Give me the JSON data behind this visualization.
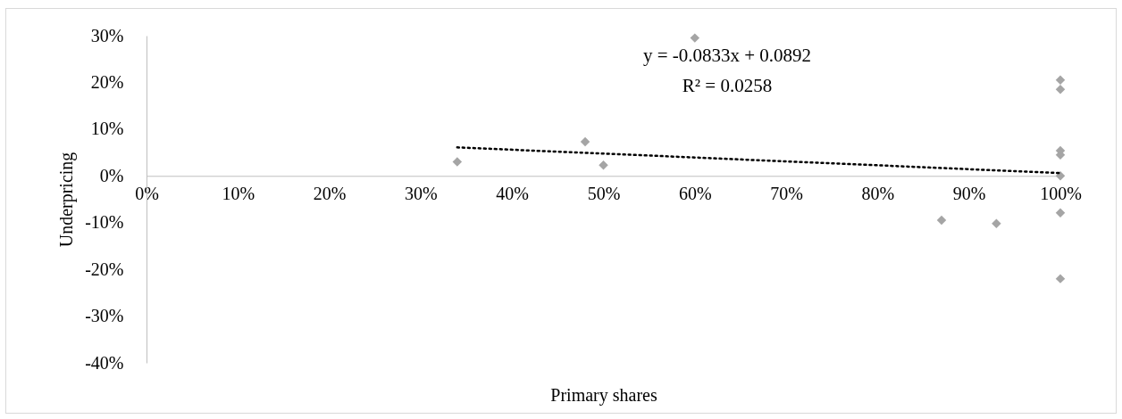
{
  "chart_data": {
    "type": "scatter",
    "xlabel": "Primary shares",
    "ylabel": "Underpricing",
    "annotations": [
      "y = -0.0833x + 0.0892",
      "R² = 0.0258"
    ],
    "xlim": [
      0,
      1
    ],
    "ylim": [
      -0.4,
      0.3
    ],
    "xticks": [
      {
        "value": 0,
        "label": "0%"
      },
      {
        "value": 0.1,
        "label": "10%"
      },
      {
        "value": 0.2,
        "label": "20%"
      },
      {
        "value": 0.3,
        "label": "30%"
      },
      {
        "value": 0.4,
        "label": "40%"
      },
      {
        "value": 0.5,
        "label": "50%"
      },
      {
        "value": 0.6,
        "label": "60%"
      },
      {
        "value": 0.7,
        "label": "70%"
      },
      {
        "value": 0.8,
        "label": "80%"
      },
      {
        "value": 0.9,
        "label": "90%"
      },
      {
        "value": 1,
        "label": "100%"
      }
    ],
    "yticks": [
      {
        "value": -0.4,
        "label": "-40%"
      },
      {
        "value": -0.3,
        "label": "-30%"
      },
      {
        "value": -0.2,
        "label": "-20%"
      },
      {
        "value": -0.1,
        "label": "-10%"
      },
      {
        "value": 0,
        "label": "0%"
      },
      {
        "value": 0.1,
        "label": "10%"
      },
      {
        "value": 0.2,
        "label": "20%"
      },
      {
        "value": 0.3,
        "label": "30%"
      }
    ],
    "grid": false,
    "series": [
      {
        "color": "#a5a5a5",
        "marker": "diamond",
        "x": [
          0.34,
          0.48,
          0.5,
          0.6,
          0.87,
          0.93,
          1,
          1,
          1,
          1,
          1,
          1,
          1
        ],
        "values": [
          0.03,
          0.073,
          0.023,
          0.295,
          -0.095,
          -0.102,
          0.205,
          0.185,
          0.054,
          0.045,
          0,
          -0.079,
          -0.22
        ]
      },
      {
        "type": "line",
        "color": "#000000",
        "line_style": "dotted",
        "x": [
          0.34,
          1
        ],
        "values": [
          0.061,
          0.006
        ]
      }
    ]
  }
}
